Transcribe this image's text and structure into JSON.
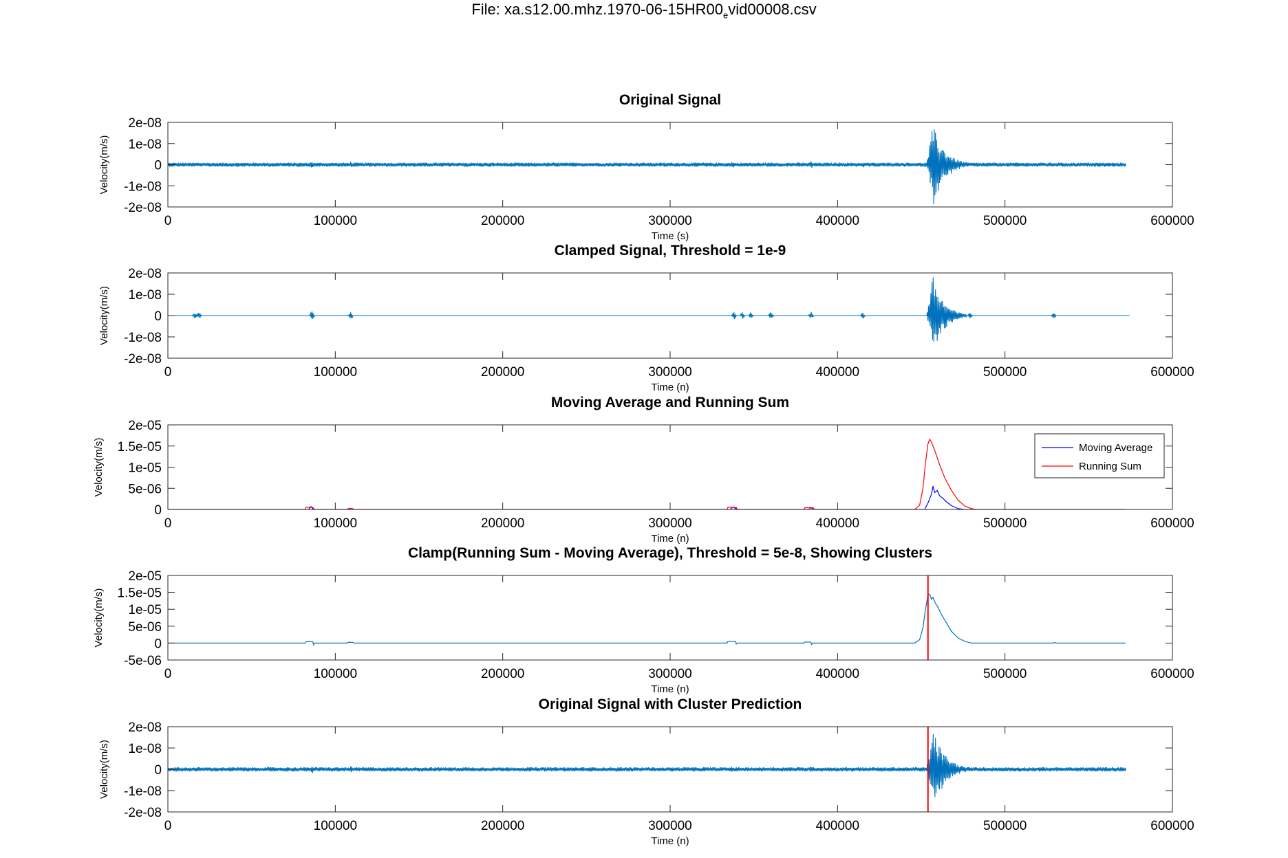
{
  "figure": {
    "title_prefix": "File: xa.s12.00.mhz.1970-06-15HR00",
    "title_sub": "e",
    "title_suffix": "vid00008.csv"
  },
  "chart_data": [
    {
      "type": "line",
      "title": "Original Signal",
      "xlabel": "Time (s)",
      "ylabel": "Velocity(m/s)",
      "xlim": [
        0,
        600000
      ],
      "ylim": [
        -2e-08,
        2e-08
      ],
      "xticks": [
        "0",
        "100000",
        "200000",
        "300000",
        "400000",
        "500000",
        "600000"
      ],
      "yticks": [
        "2e-08",
        "1e-08",
        "0",
        "-1e-08",
        "-2e-08"
      ],
      "color": "#0072BD",
      "signal": {
        "x_end": 572000,
        "noise_amplitude": 1e-09,
        "bursts": [
          {
            "x": 86000,
            "amp": 2.3e-09
          },
          {
            "x": 109000,
            "amp": 1.8e-09
          },
          {
            "x": 337000,
            "amp": 1.8e-09
          },
          {
            "x": 360000,
            "amp": 1.6e-09
          },
          {
            "x": 384000,
            "amp": 2e-09
          },
          {
            "x": 415000,
            "amp": 1.4e-09
          },
          {
            "x": 529000,
            "amp": 1.2e-09
          }
        ],
        "event": {
          "start": 453000,
          "peak": 457000,
          "end": 480000,
          "peak_amp": 1.9e-08
        }
      }
    },
    {
      "type": "line",
      "title": "Clamped Signal, Threshold = 1e-9",
      "xlabel": "Time (n)",
      "ylabel": "Velocity(m/s)",
      "xlim": [
        0,
        600000
      ],
      "ylim": [
        -2e-08,
        2e-08
      ],
      "xticks": [
        "0",
        "100000",
        "200000",
        "300000",
        "400000",
        "500000",
        "600000"
      ],
      "yticks": [
        "2e-08",
        "1e-08",
        "0",
        "-1e-08",
        "-2e-08"
      ],
      "color": "#0072BD",
      "signal": {
        "x_end": 574000,
        "noise_amplitude": 0,
        "bursts": [
          {
            "x": 16000,
            "amp": 1.6e-09
          },
          {
            "x": 18500,
            "amp": 1.6e-09
          },
          {
            "x": 86000,
            "amp": 3e-09
          },
          {
            "x": 109000,
            "amp": 2.2e-09
          },
          {
            "x": 338000,
            "amp": 2.4e-09
          },
          {
            "x": 343000,
            "amp": 1.6e-09
          },
          {
            "x": 348000,
            "amp": 1.6e-09
          },
          {
            "x": 360000,
            "amp": 2.2e-09
          },
          {
            "x": 384000,
            "amp": 2e-09
          },
          {
            "x": 415000,
            "amp": 1.8e-09
          },
          {
            "x": 479000,
            "amp": 1.6e-09
          },
          {
            "x": 529000,
            "amp": 1.8e-09
          }
        ],
        "event": {
          "start": 453000,
          "peak": 457000,
          "end": 477000,
          "peak_amp": 1.9e-08
        }
      }
    },
    {
      "type": "line",
      "title": "Moving Average and Running Sum",
      "xlabel": "Time (n)",
      "ylabel": "Velocity(m/s)",
      "xlim": [
        0,
        600000
      ],
      "ylim": [
        0,
        2e-05
      ],
      "xticks": [
        "0",
        "100000",
        "200000",
        "300000",
        "400000",
        "500000",
        "600000"
      ],
      "yticks": [
        "2e-05",
        "1.5e-05",
        "1e-05",
        "5e-06",
        "0"
      ],
      "legend": [
        "Moving Average",
        "Running Sum"
      ],
      "legend_position": "top-right",
      "series": [
        {
          "name": "Moving Average",
          "color": "#0000FF",
          "points": [
            [
              0,
              0
            ],
            [
              84000,
              0
            ],
            [
              85500,
              7e-07
            ],
            [
              86500,
              2e-07
            ],
            [
              88000,
              0
            ],
            [
              108000,
              0
            ],
            [
              109000,
              3e-07
            ],
            [
              110000,
              0
            ],
            [
              336000,
              0
            ],
            [
              337500,
              6e-07
            ],
            [
              339000,
              2e-07
            ],
            [
              341000,
              0
            ],
            [
              383000,
              0
            ],
            [
              384000,
              5e-07
            ],
            [
              385500,
              0
            ],
            [
              452000,
              0
            ],
            [
              454000,
              1.5e-06
            ],
            [
              456000,
              3.5e-06
            ],
            [
              457000,
              5.5e-06
            ],
            [
              458000,
              4e-06
            ],
            [
              459500,
              4.5e-06
            ],
            [
              461000,
              3.2e-06
            ],
            [
              463000,
              2.6e-06
            ],
            [
              465000,
              1.8e-06
            ],
            [
              468000,
              9e-07
            ],
            [
              472000,
              2e-07
            ],
            [
              476000,
              0
            ],
            [
              572000,
              0
            ]
          ]
        },
        {
          "name": "Running Sum",
          "color": "#FF0000",
          "points": [
            [
              0,
              0
            ],
            [
              82000,
              0
            ],
            [
              82500,
              5e-07
            ],
            [
              86500,
              5e-07
            ],
            [
              87500,
              0
            ],
            [
              107000,
              0
            ],
            [
              107500,
              2e-07
            ],
            [
              110500,
              2e-07
            ],
            [
              111000,
              0
            ],
            [
              334000,
              0
            ],
            [
              334500,
              5e-07
            ],
            [
              339500,
              5e-07
            ],
            [
              340000,
              0
            ],
            [
              380000,
              0
            ],
            [
              380500,
              4e-07
            ],
            [
              385500,
              4e-07
            ],
            [
              386000,
              0
            ],
            [
              446000,
              0
            ],
            [
              449000,
              1e-06
            ],
            [
              451000,
              5e-06
            ],
            [
              452500,
              1.1e-05
            ],
            [
              454000,
              1.55e-05
            ],
            [
              455000,
              1.66e-05
            ],
            [
              456000,
              1.6e-05
            ],
            [
              458000,
              1.4e-05
            ],
            [
              461000,
              1.05e-05
            ],
            [
              464000,
              7.5e-06
            ],
            [
              468000,
              4.5e-06
            ],
            [
              472000,
              2.2e-06
            ],
            [
              476000,
              8e-07
            ],
            [
              480000,
              2e-07
            ],
            [
              483000,
              0
            ],
            [
              572000,
              0
            ]
          ]
        }
      ]
    },
    {
      "type": "line",
      "title": "Clamp(Running Sum - Moving Average), Threshold = 5e-8, Showing Clusters",
      "xlabel": "Time (n)",
      "ylabel": "Velocity(m/s)",
      "xlim": [
        0,
        600000
      ],
      "ylim": [
        -5e-06,
        2e-05
      ],
      "xticks": [
        "0",
        "100000",
        "200000",
        "300000",
        "400000",
        "500000",
        "600000"
      ],
      "yticks": [
        "2e-05",
        "1.5e-05",
        "1e-05",
        "5e-06",
        "0",
        "-5e-06"
      ],
      "cluster_x": 454000,
      "cluster_color": "#FF0000",
      "series": [
        {
          "color": "#0072BD",
          "points": [
            [
              0,
              0
            ],
            [
              82000,
              0
            ],
            [
              82500,
              4e-07
            ],
            [
              86500,
              4e-07
            ],
            [
              87000,
              -5e-07
            ],
            [
              87500,
              0
            ],
            [
              107000,
              0
            ],
            [
              107500,
              2e-07
            ],
            [
              110500,
              2e-07
            ],
            [
              111000,
              0
            ],
            [
              334000,
              0
            ],
            [
              334500,
              5e-07
            ],
            [
              339000,
              5e-07
            ],
            [
              339500,
              -3e-07
            ],
            [
              340000,
              0
            ],
            [
              380000,
              0
            ],
            [
              380500,
              3e-07
            ],
            [
              384000,
              3e-07
            ],
            [
              384500,
              -4e-07
            ],
            [
              385000,
              0
            ],
            [
              446000,
              0
            ],
            [
              449000,
              1e-06
            ],
            [
              451000,
              4.5e-06
            ],
            [
              452500,
              1e-05
            ],
            [
              454000,
              1.42e-05
            ],
            [
              455000,
              1.45e-05
            ],
            [
              456000,
              1.3e-05
            ],
            [
              457000,
              1.35e-05
            ],
            [
              458000,
              1.22e-05
            ],
            [
              460000,
              1.05e-05
            ],
            [
              462000,
              8.5e-06
            ],
            [
              465000,
              6e-06
            ],
            [
              468000,
              3.5e-06
            ],
            [
              472000,
              1.5e-06
            ],
            [
              476000,
              5e-07
            ],
            [
              480000,
              0
            ],
            [
              529000,
              0
            ],
            [
              529500,
              2e-07
            ],
            [
              530500,
              0
            ],
            [
              572000,
              0
            ]
          ]
        }
      ]
    },
    {
      "type": "line",
      "title": "Original Signal with Cluster Prediction",
      "xlabel": "Time (n)",
      "ylabel": "Velocity(m/s)",
      "xlim": [
        0,
        600000
      ],
      "ylim": [
        -2e-08,
        2e-08
      ],
      "xticks": [
        "0",
        "100000",
        "200000",
        "300000",
        "400000",
        "500000",
        "600000"
      ],
      "yticks": [
        "2e-08",
        "1e-08",
        "0",
        "-1e-08",
        "-2e-08"
      ],
      "color": "#0072BD",
      "cluster_x": 454000,
      "cluster_color": "#FF0000",
      "signal": {
        "x_end": 572000,
        "noise_amplitude": 1e-09,
        "bursts": [
          {
            "x": 86000,
            "amp": 2.3e-09
          },
          {
            "x": 109000,
            "amp": 1.8e-09
          },
          {
            "x": 337000,
            "amp": 1.8e-09
          },
          {
            "x": 360000,
            "amp": 1.6e-09
          },
          {
            "x": 384000,
            "amp": 2e-09
          },
          {
            "x": 415000,
            "amp": 1.4e-09
          },
          {
            "x": 529000,
            "amp": 1.2e-09
          }
        ],
        "event": {
          "start": 453000,
          "peak": 457000,
          "end": 480000,
          "peak_amp": 1.9e-08
        }
      }
    }
  ]
}
